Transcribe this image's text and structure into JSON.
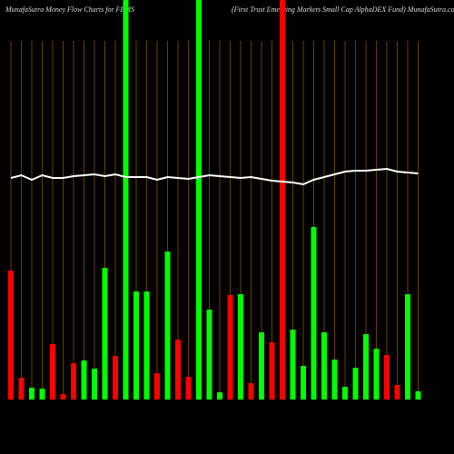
{
  "chart_data": {
    "type": "bar",
    "title": "MunafaSutra  Money  Flow  Charts for FEMS",
    "subtitle": "(First Trust Emerging Markets Small Cap AlphaDEX  Fund) MunafaSutra.com",
    "categories": [
      null,
      null,
      null,
      null,
      null,
      null,
      null,
      null,
      null,
      null,
      null,
      null,
      null,
      null,
      null,
      null,
      null,
      null,
      null,
      null,
      null,
      null,
      null,
      null,
      null,
      null,
      null,
      null,
      null,
      null,
      null,
      null,
      null,
      null,
      null,
      null,
      null,
      null,
      null,
      null
    ],
    "series": [
      {
        "color": "mixed",
        "colors": [
          "#ff0000",
          "#ff0000",
          "#00ff00",
          "#00ff00",
          "#ff0000",
          "#ff0000",
          "#ff0000",
          "#00ff00",
          "#00ff00",
          "#00ff00",
          "#ff0000",
          "#00ff00",
          "#00ff00",
          "#00ff00",
          "#ff0000",
          "#00ff00",
          "#ff0000",
          "#ff0000",
          "#00ff00",
          "#00ff00",
          "#00ff00",
          "#ff0000",
          "#00ff00",
          "#ff0000",
          "#00ff00",
          "#ff0000",
          "#ff0000",
          "#00ff00",
          "#00ff00",
          "#00ff00",
          "#00ff00",
          "#00ff00",
          "#00ff00",
          "#00ff00",
          "#00ff00",
          "#00ff00",
          "#ff0000",
          "#ff0000",
          "#00ff00",
          "#00ff00"
        ],
        "values": [
          142,
          24,
          13,
          12,
          61,
          6,
          40,
          43,
          34,
          145,
          48,
          440,
          119,
          119,
          29,
          163,
          66,
          25,
          440,
          99,
          8,
          115,
          116,
          18,
          74,
          63,
          440,
          77,
          37,
          190,
          74,
          44,
          14,
          35,
          72,
          56,
          49,
          16,
          116,
          9
        ]
      },
      {
        "color": "#ffffff",
        "axis": "y2",
        "values": [
          244,
          247,
          242,
          247,
          244,
          244,
          246,
          247,
          248,
          246,
          248,
          245,
          245,
          245,
          242,
          245,
          244,
          243,
          245,
          247,
          246,
          245,
          244,
          245,
          243,
          241,
          240,
          239,
          237,
          242,
          245,
          248,
          251,
          252,
          252,
          253,
          254,
          251,
          250,
          249
        ]
      }
    ],
    "ylim": [
      0,
      440
    ],
    "y2lim": [
      0,
      440
    ],
    "grid_color": "#b36b00",
    "background": "#000000"
  }
}
